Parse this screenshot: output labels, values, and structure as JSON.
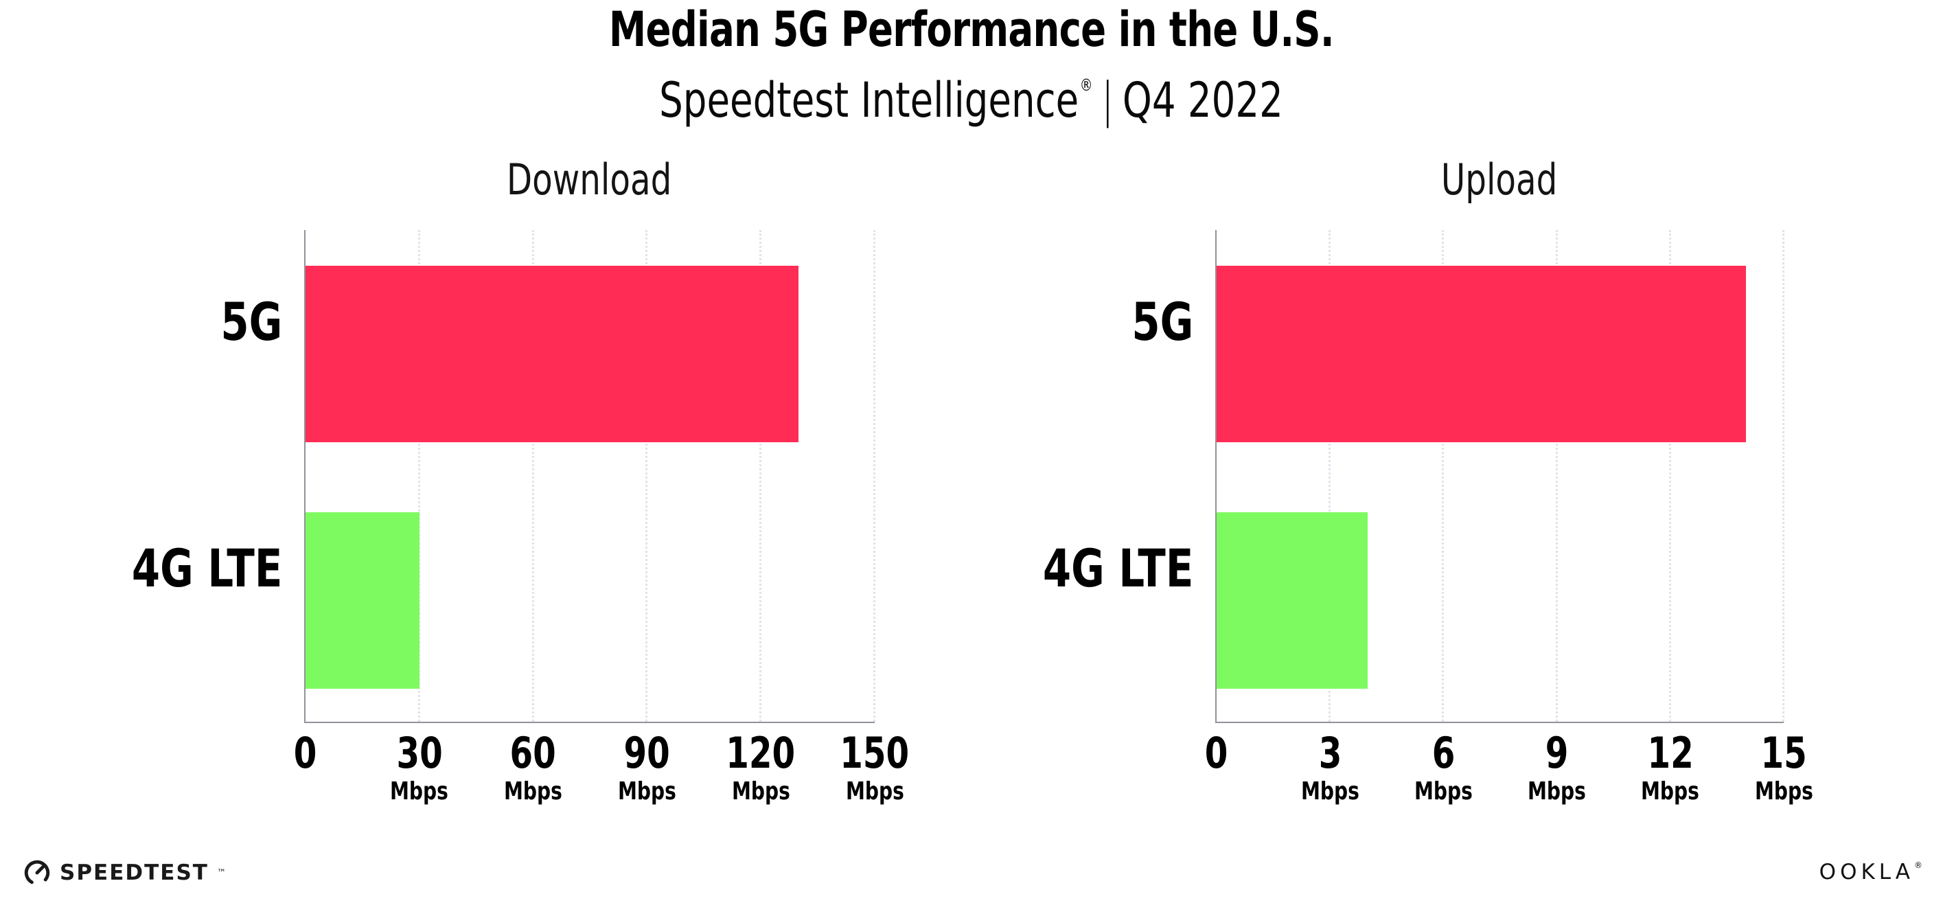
{
  "header": {
    "title": "Median 5G Performance in the U.S.",
    "subtitle_brand": "Speedtest Intelligence",
    "subtitle_registered": "®",
    "subtitle_separator": "|",
    "subtitle_period": "Q4 2022"
  },
  "chart_data": {
    "type": "bar",
    "orientation": "horizontal",
    "grid": "vertical-dotted",
    "legend": "none",
    "categories": [
      "5G",
      "4G LTE"
    ],
    "panels": [
      {
        "title": "Download",
        "xlim": [
          0,
          150
        ],
        "ticks": [
          0,
          30,
          60,
          90,
          120,
          150
        ],
        "tick_unit": "Mbps",
        "series": [
          {
            "label": "5G",
            "value": 130,
            "color": "#FF2D56"
          },
          {
            "label": "4G LTE",
            "value": 30,
            "color": "#7EFA61"
          }
        ]
      },
      {
        "title": "Upload",
        "xlim": [
          0,
          15
        ],
        "ticks": [
          0,
          3,
          6,
          9,
          12,
          15
        ],
        "tick_unit": "Mbps",
        "series": [
          {
            "label": "5G",
            "value": 14,
            "color": "#FF2D56"
          },
          {
            "label": "4G LTE",
            "value": 4,
            "color": "#7EFA61"
          }
        ]
      }
    ]
  },
  "footer": {
    "speedtest_label": "SPEEDTEST",
    "speedtest_tm": "™",
    "ookla_label": "OOKLA",
    "ookla_reg": "®"
  },
  "colors": {
    "bar_5g": "#FF2D56",
    "bar_4g_lte": "#7EFA61",
    "axis": "#92929a",
    "gridline": "#e2e2ec",
    "text": "#000000"
  }
}
